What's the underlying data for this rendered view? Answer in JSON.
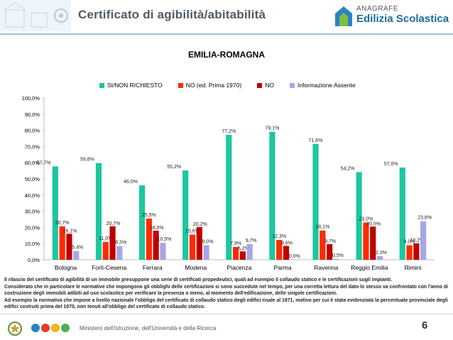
{
  "header": {
    "title": "Certificato di agibilità/abitabilità",
    "logo_line1": "ANAGRAFE",
    "logo_line2": "Edilizia Scolastica"
  },
  "colors": {
    "si": "#1dc6a0",
    "no_prima": "#ff2a00",
    "no": "#c00000",
    "assente": "#a8a6e6",
    "header_accent": "#9cc3e0"
  },
  "chart_data": {
    "type": "bar",
    "title": "EMILIA-ROMAGNA",
    "categories": [
      "Bologna",
      "Forlì-Cesena",
      "Ferrara",
      "Modena",
      "Piacenza",
      "Parma",
      "Ravenna",
      "Reggio Emilia",
      "Rimini"
    ],
    "series": [
      {
        "name": "SI/NON RICHIESTO",
        "values": [
          57.7,
          59.8,
          46.0,
          55.2,
          77.2,
          79.1,
          71.6,
          54.2,
          57.0
        ],
        "labels": [
          "57,7%",
          "59,8%",
          "46,0%",
          "55,2%",
          "77,2%",
          "79,1%",
          "71,6%",
          "54,2%",
          "57,0%"
        ]
      },
      {
        "name": "NO (ed. Prima 1970)",
        "values": [
          20.7,
          11.0,
          25.5,
          15.6,
          7.9,
          12.3,
          18.1,
          23.0,
          9.0
        ],
        "labels": [
          "20,7%",
          "11,0%",
          "25,5%",
          "15,6%",
          "7,9%",
          "12,3%",
          "18,1%",
          "23,0%",
          "9,0%"
        ]
      },
      {
        "name": "NO",
        "values": [
          16.1,
          20.7,
          18.0,
          20.2,
          5.2,
          8.6,
          9.7,
          20.5,
          10.2
        ],
        "labels": [
          "16,1%",
          "20,7%",
          "18,0%",
          "20,2%",
          "5,2%",
          "8,6%",
          "9,7%",
          "20,5%",
          "10,2%"
        ]
      },
      {
        "name": "Informazione Assente",
        "values": [
          5.4,
          8.5,
          10.5,
          9.0,
          9.7,
          0.0,
          0.5,
          2.3,
          23.8
        ],
        "labels": [
          "5,4%",
          "8,5%",
          "10,5%",
          "9,0%",
          "9,7%",
          "0,0%",
          "0,5%",
          "2,3%",
          "23,8%"
        ]
      }
    ],
    "yticks": [
      "0,0%",
      "10,0%",
      "20,0%",
      "30,0%",
      "40,0%",
      "50,0%",
      "60,0%",
      "70,0%",
      "80,0%",
      "90,0%",
      "100,0%"
    ],
    "ylim": [
      0,
      100
    ],
    "grid": false,
    "legend_position": "top"
  },
  "note": {
    "lines": [
      "Il rilascio del certificato di agibilità di un immobile presuppone una serie di certificati propedeutici, quali ad esempio il collaudo statico e le certificazioni sugli impianti.",
      "Considerato che in particolare le normative che impongono gli obblighi delle certificazioni si sono succedute nel tempo, per una corretta lettura del dato lo stesso va confrontato con l'anno di costruzione degli immobili adibiti ad uso scolastico per verificare la presenza o meno, al momento dell'edificazione, delle singole certificazioni.",
      "Ad esempio la normativa che impone a livello nazionale l'obbligo del certificato di collaudo statico degli edifici risale al 1971, motivo per cui è stata evidenziata la percentuale provinciale degli edifici costruiti prima del 1970, non tenuti all'obbligo del certificato di collaudo statico."
    ]
  },
  "footer": {
    "ministry": "Ministero dell'Istruzione, dell'Università e della Ricerca",
    "page_number": "6"
  }
}
